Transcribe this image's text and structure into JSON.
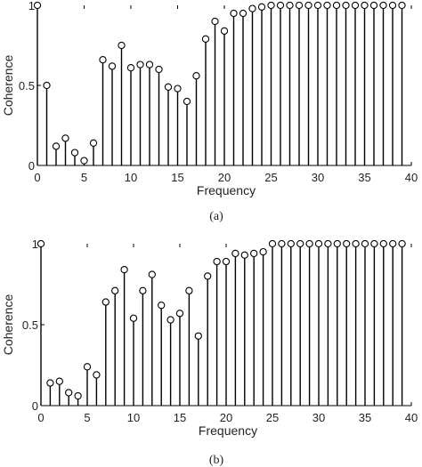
{
  "chart_data": [
    {
      "type": "stem",
      "panel": "(a)",
      "xlabel": "Frequency",
      "ylabel": "Coherence",
      "xlim": [
        0,
        40
      ],
      "ylim": [
        0,
        1
      ],
      "xticks": [
        0,
        5,
        10,
        15,
        20,
        25,
        30,
        35,
        40
      ],
      "yticks": [
        0,
        0.5,
        1
      ],
      "ytick_labels": [
        "0",
        "0.5",
        "1"
      ],
      "grid": false,
      "x": [
        0,
        1,
        2,
        3,
        4,
        5,
        6,
        7,
        8,
        9,
        10,
        11,
        12,
        13,
        14,
        15,
        16,
        17,
        18,
        19,
        20,
        21,
        22,
        23,
        24,
        25,
        26,
        27,
        28,
        29,
        30,
        31,
        32,
        33,
        34,
        35,
        36,
        37,
        38,
        39
      ],
      "values": [
        1.0,
        0.5,
        0.12,
        0.17,
        0.08,
        0.03,
        0.14,
        0.66,
        0.62,
        0.75,
        0.61,
        0.63,
        0.63,
        0.6,
        0.49,
        0.48,
        0.4,
        0.56,
        0.79,
        0.9,
        0.84,
        0.95,
        0.95,
        0.98,
        0.99,
        1.0,
        1.0,
        1.0,
        1.0,
        1.0,
        1.0,
        1.0,
        1.0,
        1.0,
        1.0,
        1.0,
        1.0,
        1.0,
        1.0,
        1.0
      ]
    },
    {
      "type": "stem",
      "panel": "(b)",
      "xlabel": "Frequency",
      "ylabel": "Coherence",
      "xlim": [
        0,
        40
      ],
      "ylim": [
        0,
        1
      ],
      "xticks": [
        0,
        5,
        10,
        15,
        20,
        25,
        30,
        35,
        40
      ],
      "yticks": [
        0,
        0.5,
        1
      ],
      "ytick_labels": [
        "0",
        "0.5",
        "1"
      ],
      "grid": false,
      "x": [
        0,
        1,
        2,
        3,
        4,
        5,
        6,
        7,
        8,
        9,
        10,
        11,
        12,
        13,
        14,
        15,
        16,
        17,
        18,
        19,
        20,
        21,
        22,
        23,
        24,
        25,
        26,
        27,
        28,
        29,
        30,
        31,
        32,
        33,
        34,
        35,
        36,
        37,
        38,
        39
      ],
      "values": [
        1.0,
        0.14,
        0.15,
        0.08,
        0.06,
        0.24,
        0.19,
        0.64,
        0.71,
        0.84,
        0.54,
        0.71,
        0.81,
        0.62,
        0.53,
        0.57,
        0.71,
        0.43,
        0.8,
        0.89,
        0.89,
        0.94,
        0.93,
        0.94,
        0.95,
        1.0,
        1.0,
        1.0,
        1.0,
        1.0,
        1.0,
        1.0,
        1.0,
        1.0,
        1.0,
        1.0,
        1.0,
        1.0,
        1.0,
        1.0
      ]
    }
  ]
}
